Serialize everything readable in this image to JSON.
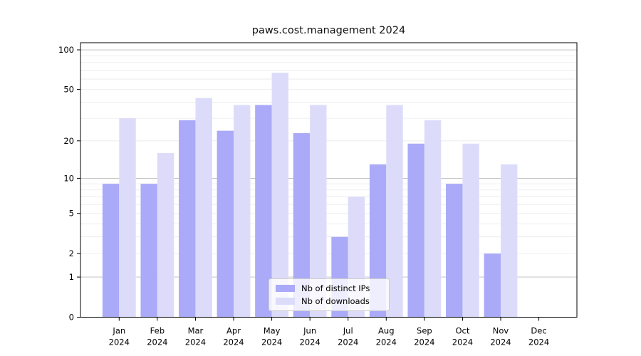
{
  "chart_data": {
    "type": "bar",
    "title": "paws.cost.management 2024",
    "categories": [
      "Jan",
      "Feb",
      "Mar",
      "Apr",
      "May",
      "Jun",
      "Jul",
      "Aug",
      "Sep",
      "Oct",
      "Nov",
      "Dec"
    ],
    "category_year": "2024",
    "series": [
      {
        "name": "Nb of distinct IPs",
        "color": "#aaaaf8",
        "values": [
          9,
          9,
          29,
          24,
          38,
          23,
          3,
          13,
          19,
          9,
          2,
          0
        ]
      },
      {
        "name": "Nb of downloads",
        "color": "#dcdcfa",
        "values": [
          30,
          16,
          43,
          38,
          67,
          38,
          7,
          38,
          29,
          19,
          13,
          0
        ]
      }
    ],
    "yscale": "log1p",
    "xlabel": "",
    "ylabel": "",
    "y_tick_labels": [
      "100",
      "50",
      "20",
      "10",
      "5",
      "2",
      "1",
      "0"
    ],
    "y_tick_values": [
      100,
      50,
      20,
      10,
      5,
      2,
      1,
      0
    ],
    "major_gridline_values": [
      1,
      10,
      100
    ],
    "minor_gridline_values": [
      2,
      3,
      4,
      5,
      6,
      7,
      8,
      9,
      20,
      30,
      40,
      50,
      60,
      70,
      80,
      90
    ],
    "grid": true,
    "legend_position": "lower center",
    "colors": {
      "distinct_ips_bar": "#aaaaf8",
      "downloads_bar": "#dcdcfa",
      "major_grid": "#bbbbbb",
      "minor_grid": "#e9e9e9",
      "axis": "#000000",
      "legend_border": "#cccccc",
      "background": "#ffffff"
    }
  }
}
